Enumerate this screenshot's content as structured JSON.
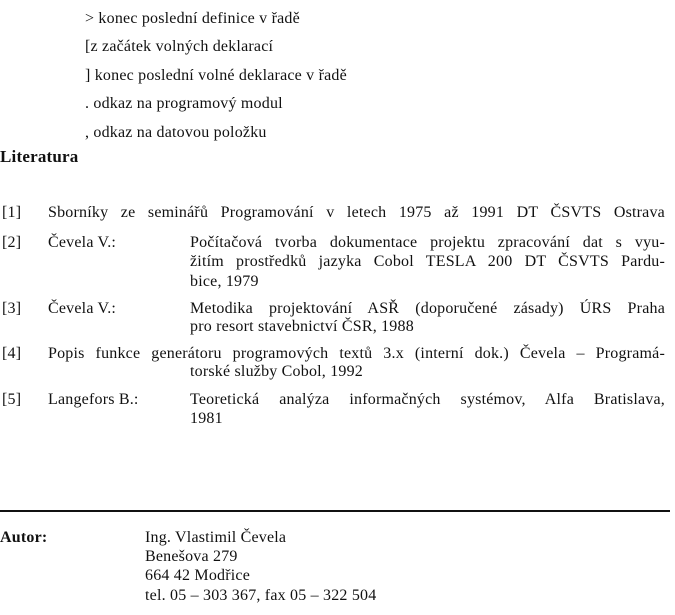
{
  "symbols": [
    "> konec poslední definice v řadě",
    "[z začátek volných deklarací",
    "] konec poslední volné deklarace v řadě",
    ". odkaz na programový modul",
    ", odkaz na datovou položku"
  ],
  "literature": {
    "heading": "Literatura",
    "refs": [
      {
        "num": "[1]",
        "author": "",
        "lines": [
          "Sborníky ze seminářů Programování v letech 1975 až 1991 DT ČSVTS Ostrava"
        ]
      },
      {
        "num": "[2]",
        "author": "Čevela V.:",
        "lines": [
          "Počítačová tvorba dokumentace projektu zpracování dat s vyu-",
          "žitím prostředků jazyka Cobol TESLA 200 DT ČSVTS Pardu-",
          "bice, 1979"
        ]
      },
      {
        "num": "[3]",
        "author": "Čevela V.:",
        "lines": [
          "Metodika projektování ASŘ (doporučené zásady) ÚRS Praha",
          "pro resort stavebnictví ČSR, 1988"
        ]
      },
      {
        "num": "[4]",
        "author": "",
        "lines": [
          "Popis funkce generátoru programových textů 3.x (interní dok.) Čevela – Programá-",
          "torské služby Cobol, 1992"
        ]
      },
      {
        "num": "[5]",
        "author": "Langefors B.:",
        "lines": [
          "Teoretická analýza informačných systémov, Alfa Bratislava,",
          "1981"
        ]
      }
    ]
  },
  "author": {
    "label": "Autor:",
    "lines": [
      "Ing. Vlastimil Čevela",
      "Benešova 279",
      "664 42 Modřice",
      "tel. 05 – 303 367, fax 05 – 322 504"
    ]
  }
}
